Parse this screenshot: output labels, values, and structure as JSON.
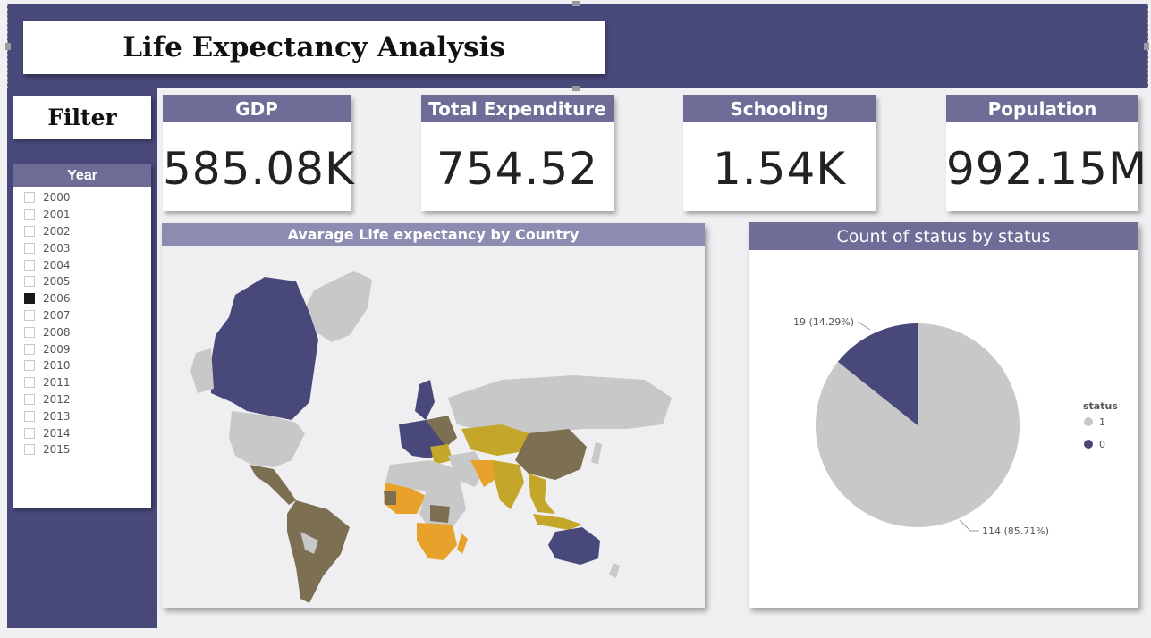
{
  "header": {
    "title": "Life Expectancy Analysis"
  },
  "filter": {
    "title": "Filter",
    "slicer_title": "Year",
    "years": [
      {
        "label": "2000",
        "checked": false
      },
      {
        "label": "2001",
        "checked": false
      },
      {
        "label": "2002",
        "checked": false
      },
      {
        "label": "2003",
        "checked": false
      },
      {
        "label": "2004",
        "checked": false
      },
      {
        "label": "2005",
        "checked": false
      },
      {
        "label": "2006",
        "checked": true
      },
      {
        "label": "2007",
        "checked": false
      },
      {
        "label": "2008",
        "checked": false
      },
      {
        "label": "2009",
        "checked": false
      },
      {
        "label": "2010",
        "checked": false
      },
      {
        "label": "2011",
        "checked": false
      },
      {
        "label": "2012",
        "checked": false
      },
      {
        "label": "2013",
        "checked": false
      },
      {
        "label": "2014",
        "checked": false
      },
      {
        "label": "2015",
        "checked": false
      }
    ]
  },
  "kpis": {
    "gdp": {
      "label": "GDP",
      "value": "585.08K"
    },
    "expenditure": {
      "label": "Total Expenditure",
      "value": "754.52"
    },
    "schooling": {
      "label": "Schooling",
      "value": "1.54K"
    },
    "population": {
      "label": "Population",
      "value": "992.15M"
    }
  },
  "map": {
    "title": "Avarage Life expectancy by Country",
    "colors": {
      "high": "#48487a",
      "upper_mid": "#7d7052",
      "mid": "#c4a62a",
      "low": "#e8a12a",
      "no_data": "#c8c8c8",
      "ocean": "#efeff1"
    }
  },
  "chart_data": {
    "type": "pie",
    "title": "Count of status by status",
    "legend_title": "status",
    "legend_position": "right",
    "slices": [
      {
        "name": "1",
        "value": 114,
        "label": "114 (85.71%)",
        "color": "#c8c8c8"
      },
      {
        "name": "0",
        "value": 19,
        "label": "19 (14.29%)",
        "color": "#48487a"
      }
    ]
  }
}
